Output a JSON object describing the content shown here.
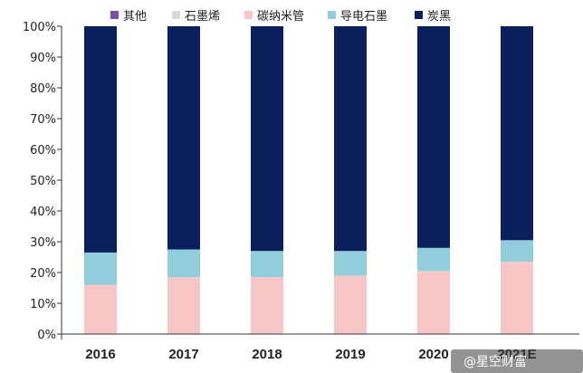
{
  "chart_data": {
    "type": "bar",
    "stacked": true,
    "percent": true,
    "categories": [
      "2016",
      "2017",
      "2018",
      "2019",
      "2020",
      "2021E"
    ],
    "series": [
      {
        "name": "其他",
        "color": "#7b4fa6",
        "values": [
          0,
          0,
          0,
          0,
          0,
          0
        ]
      },
      {
        "name": "石墨烯",
        "color": "#d9d9d9",
        "values": [
          0,
          0,
          0,
          0,
          0,
          0
        ]
      },
      {
        "name": "碳纳米管",
        "color": "#f7c6c7",
        "values": [
          16.0,
          18.5,
          18.5,
          19.0,
          20.5,
          23.5
        ]
      },
      {
        "name": "导电石墨",
        "color": "#92cddc",
        "values": [
          10.5,
          9.0,
          8.5,
          8.0,
          7.5,
          7.0
        ]
      },
      {
        "name": "炭黑",
        "color": "#0b1f5c",
        "values": [
          73.5,
          72.5,
          73.0,
          73.0,
          72.0,
          69.5
        ]
      }
    ],
    "ylim": [
      0,
      100
    ],
    "yticks": [
      "0%",
      "10%",
      "20%",
      "30%",
      "40%",
      "50%",
      "60%",
      "70%",
      "80%",
      "90%",
      "100%"
    ],
    "legend_position": "top",
    "grid": false,
    "title": "",
    "xlabel": "",
    "ylabel": ""
  },
  "watermark": "@星空财富"
}
